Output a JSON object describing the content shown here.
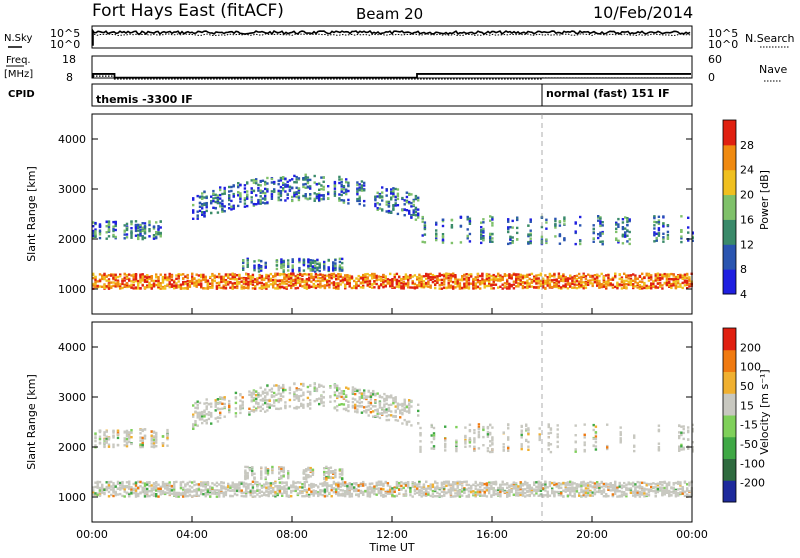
{
  "header": {
    "title": "Fort Hays East (fitACF)",
    "beam": "Beam 20",
    "date": "10/Feb/2014"
  },
  "nsky_panel": {
    "left_label": "N.Sky",
    "right_label": "N.Search",
    "left_ticks": [
      "10^5",
      "10^0"
    ],
    "right_ticks": [
      "10^5",
      "10^0"
    ]
  },
  "freq_panel": {
    "left_label_line1": "Freq.",
    "left_label_line2": "[MHz]",
    "right_label": "Nave",
    "left_ticks": [
      "18",
      "8"
    ],
    "right_ticks": [
      "60",
      "0"
    ],
    "cpid_label": "CPID",
    "modes": [
      {
        "name": "themis -3300 IF",
        "start_hour": 0
      },
      {
        "name": "normal (fast) 151 IF",
        "start_hour": 18.0
      }
    ]
  },
  "time_axis": {
    "label": "Time UT",
    "ticks": [
      "00:00",
      "04:00",
      "08:00",
      "12:00",
      "16:00",
      "20:00",
      "00:00"
    ]
  },
  "chart_data": [
    {
      "type": "heatmap",
      "name": "power",
      "ylabel": "Slant Range [km]",
      "yticks": [
        1000,
        2000,
        3000,
        4000
      ],
      "ylim": [
        500,
        4500
      ],
      "xlim_hours": [
        0,
        24
      ],
      "colorbar_label": "Power [dB]",
      "colorbar_ticks": [
        "28",
        "24",
        "20",
        "16",
        "12",
        "8",
        "4"
      ],
      "colors": [
        "#1f1fe0",
        "#2a55b0",
        "#3a8a6a",
        "#7fc16a",
        "#f0c020",
        "#f08a10",
        "#e02010"
      ]
    },
    {
      "type": "heatmap",
      "name": "velocity",
      "ylabel": "Slant Range [km]",
      "yticks": [
        1000,
        2000,
        3000,
        4000
      ],
      "ylim": [
        500,
        4500
      ],
      "xlim_hours": [
        0,
        24
      ],
      "colorbar_label": "Velocity [m s⁻¹]",
      "colorbar_ticks": [
        "200",
        "100",
        "50",
        "15",
        "-15",
        "-50",
        "-100",
        "-200"
      ],
      "colors": [
        "#1e2a9c",
        "#2f6b3f",
        "#3fa845",
        "#7fd05a",
        "#c8c8c0",
        "#f0b030",
        "#f07a10",
        "#e02010"
      ]
    }
  ]
}
